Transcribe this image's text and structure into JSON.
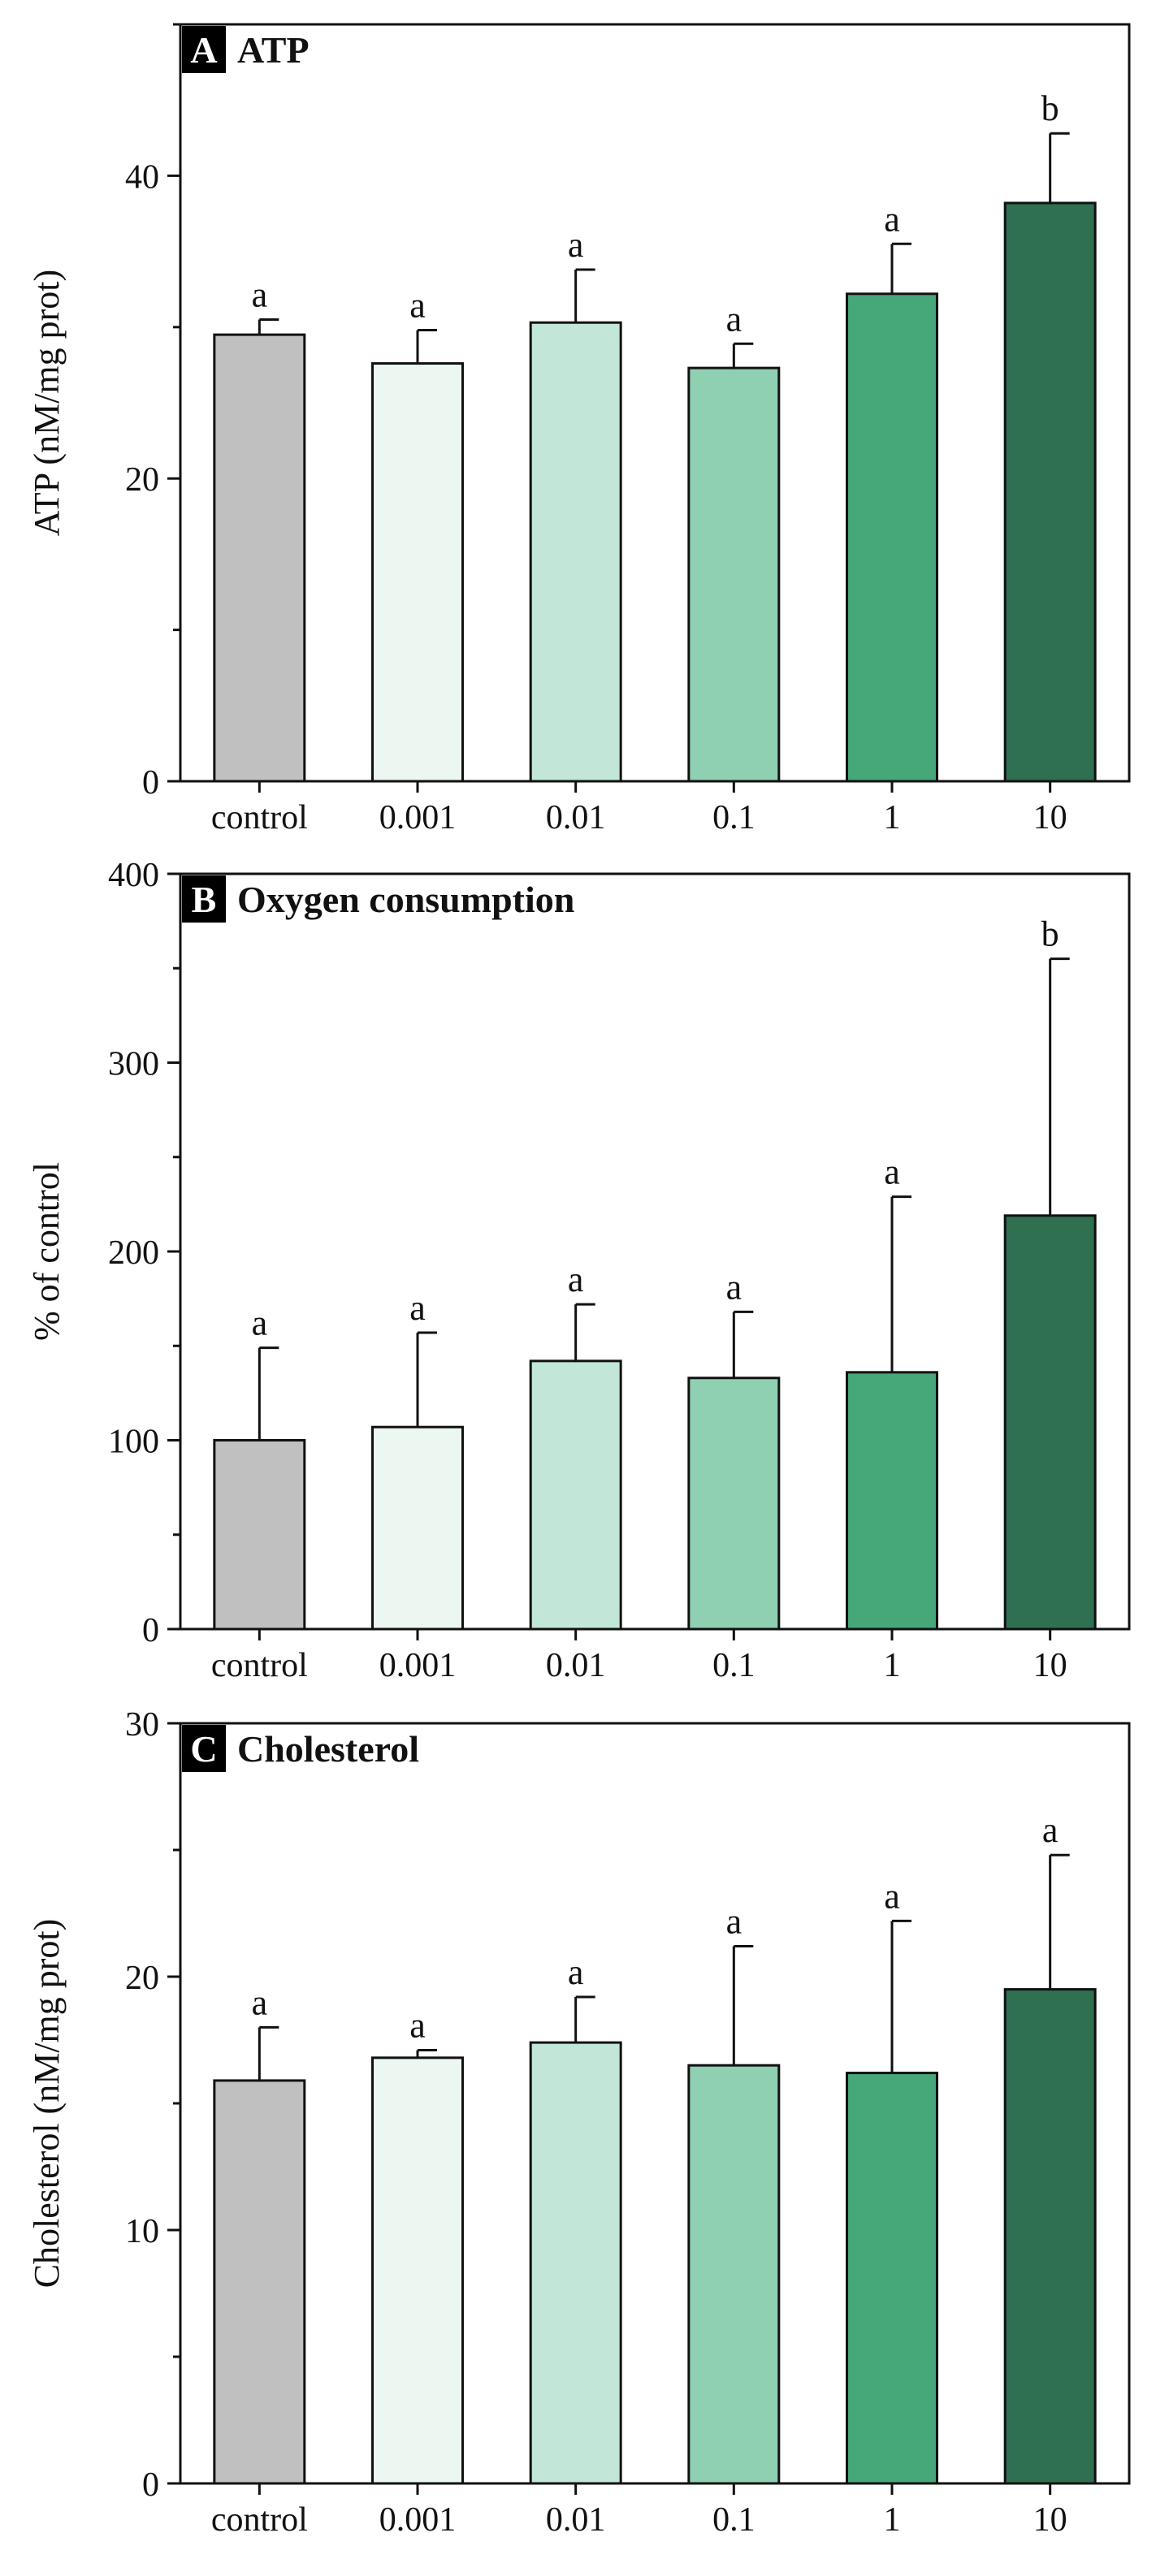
{
  "chart_data": [
    {
      "type": "bar",
      "panel_letter": "A",
      "title": "ATP",
      "ylabel": "ATP (nM/mg prot)",
      "xlabel": "",
      "categories": [
        "control",
        "0.001",
        "0.01",
        "0.1",
        "1",
        "10"
      ],
      "values": [
        29.5,
        27.6,
        30.3,
        27.3,
        32.2,
        38.2
      ],
      "errors": [
        1.0,
        2.2,
        3.5,
        1.6,
        3.3,
        4.6
      ],
      "sig_labels": [
        "a",
        "a",
        "a",
        "a",
        "a",
        "b"
      ],
      "ylim": [
        0,
        50
      ],
      "yticks": [
        0,
        20,
        40
      ],
      "grid": false
    },
    {
      "type": "bar",
      "panel_letter": "B",
      "title": "Oxygen consumption",
      "ylabel": "% of control",
      "xlabel": "",
      "categories": [
        "control",
        "0.001",
        "0.01",
        "0.1",
        "1",
        "10"
      ],
      "values": [
        100,
        107,
        142,
        133,
        136,
        219
      ],
      "errors": [
        49,
        50,
        30,
        35,
        93,
        136
      ],
      "sig_labels": [
        "a",
        "a",
        "a",
        "a",
        "a",
        "b"
      ],
      "ylim": [
        0,
        400
      ],
      "yticks": [
        0,
        100,
        200,
        300,
        400
      ],
      "grid": false
    },
    {
      "type": "bar",
      "panel_letter": "C",
      "title": "Cholesterol",
      "ylabel": "Cholesterol (nM/mg prot)",
      "xlabel": "",
      "categories": [
        "control",
        "0.001",
        "0.01",
        "0.1",
        "1",
        "10"
      ],
      "values": [
        15.9,
        16.8,
        17.4,
        16.5,
        16.2,
        19.5
      ],
      "errors": [
        2.1,
        0.3,
        1.8,
        4.7,
        6.0,
        5.3
      ],
      "sig_labels": [
        "a",
        "a",
        "a",
        "a",
        "a",
        "a"
      ],
      "ylim": [
        0,
        30
      ],
      "yticks": [
        0,
        10,
        20,
        30
      ],
      "grid": false
    }
  ],
  "colors": {
    "bars": [
      "#c0c0c0",
      "#edf7f2",
      "#c2e6d7",
      "#8fd0b2",
      "#46a878",
      "#2e7050"
    ],
    "axis": "#111111",
    "label_bg": "#000000"
  }
}
